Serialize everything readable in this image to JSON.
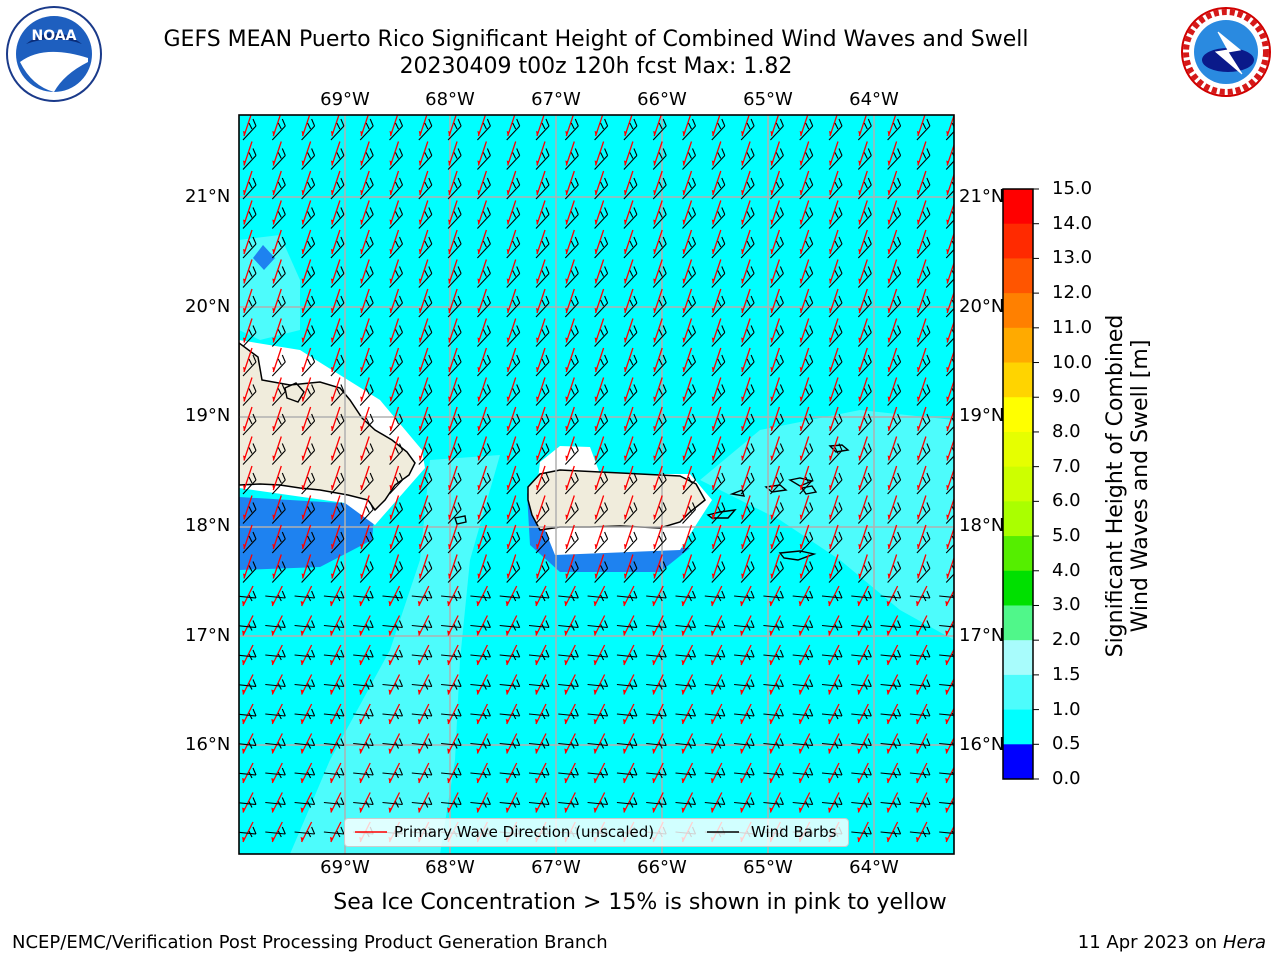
{
  "title": {
    "line1": "GEFS MEAN Puerto Rico Significant Height of Combined Wind Waves and Swell",
    "line2": "20230409 t00z 120h fcst   Max: 1.82"
  },
  "logos": {
    "noaa_text": "NOAA",
    "nws_text": "NATIONAL WEATHER SERVICE"
  },
  "map": {
    "lon_labels": [
      "69°W",
      "68°W",
      "67°W",
      "66°W",
      "65°W",
      "64°W"
    ],
    "lat_labels": [
      "21°N",
      "20°N",
      "19°N",
      "18°N",
      "17°N",
      "16°N"
    ],
    "ocean_color": "#00ffff",
    "light_color": "#4dfcfc",
    "land_color": "#f0ecdc",
    "low_wave_color": "#1e82f0",
    "wave_arrow_color": "#ff0000",
    "wind_barb_color": "#000000"
  },
  "legend": {
    "primary_wave": "Primary Wave Direction (unscaled)",
    "wind_barbs": "Wind Barbs"
  },
  "colorbar": {
    "title_line1": "Significant Height of Combined",
    "title_line2": "Wind Waves and Swell [m]",
    "ticks": [
      "15.0",
      "14.0",
      "13.0",
      "12.0",
      "11.0",
      "10.0",
      "9.0",
      "8.0",
      "7.0",
      "6.0",
      "5.0",
      "4.0",
      "3.0",
      "2.0",
      "1.5",
      "1.0",
      "0.5",
      "0.0"
    ],
    "colors": [
      "#ff0000",
      "#ff2a00",
      "#ff5500",
      "#ff8000",
      "#ffaa00",
      "#ffd400",
      "#ffff00",
      "#e6ff00",
      "#cdff00",
      "#aaff00",
      "#55ee00",
      "#00e000",
      "#50f78a",
      "#a8fcfc",
      "#4dfcfc",
      "#00ffff",
      "#1e82f0",
      "#0000ff"
    ]
  },
  "sea_ice_note": "Sea Ice Concentration > 15% is shown in pink to yellow",
  "footer": {
    "left": "NCEP/EMC/Verification Post Processing Product Generation Branch",
    "date": "11 Apr 2023 on ",
    "host": "Hera"
  }
}
